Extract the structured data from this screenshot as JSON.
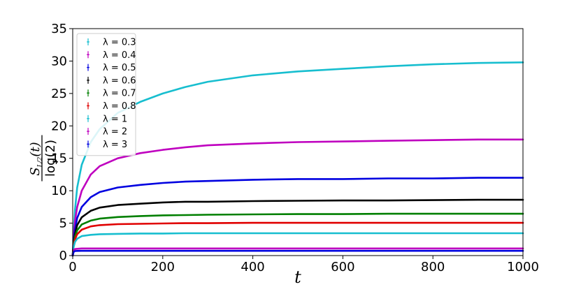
{
  "chart_data": {
    "type": "line",
    "title": "",
    "xlabel": "t",
    "ylabel": {
      "numerator": "S",
      "subscript": "L/2",
      "arg": "(t)",
      "denominator": "log(2)"
    },
    "xlim": [
      0,
      1000
    ],
    "ylim": [
      0,
      35
    ],
    "xticks": [
      "0",
      "200",
      "400",
      "600",
      "800",
      "1000"
    ],
    "yticks": [
      "0",
      "5",
      "10",
      "15",
      "20",
      "25",
      "30",
      "35"
    ],
    "grid": false,
    "legend": "top-left",
    "legend_prefix": "λ = ",
    "series": [
      {
        "name": "0.3",
        "label": "λ = 0.3",
        "color": "#17becf",
        "x": [
          0,
          2,
          5,
          10,
          20,
          40,
          60,
          100,
          150,
          200,
          250,
          300,
          400,
          500,
          600,
          700,
          800,
          900,
          1000
        ],
        "y": [
          0,
          3.5,
          7,
          10.5,
          14,
          17.5,
          19.5,
          22,
          23.7,
          25,
          26,
          26.8,
          27.8,
          28.4,
          28.8,
          29.2,
          29.5,
          29.7,
          29.8
        ]
      },
      {
        "name": "0.4",
        "label": "λ = 0.4",
        "color": "#bf00bf",
        "x": [
          0,
          2,
          5,
          10,
          20,
          40,
          60,
          100,
          150,
          200,
          250,
          300,
          400,
          500,
          600,
          700,
          800,
          900,
          1000
        ],
        "y": [
          0,
          2.8,
          5.3,
          7.5,
          10,
          12.5,
          13.8,
          15,
          15.8,
          16.3,
          16.7,
          17,
          17.3,
          17.5,
          17.6,
          17.7,
          17.8,
          17.9,
          17.9
        ]
      },
      {
        "name": "0.5",
        "label": "λ = 0.5",
        "color": "#0000e0",
        "x": [
          0,
          2,
          5,
          10,
          20,
          40,
          60,
          100,
          150,
          200,
          250,
          300,
          400,
          500,
          600,
          700,
          800,
          900,
          1000
        ],
        "y": [
          0,
          2.2,
          4,
          5.8,
          7.5,
          9,
          9.8,
          10.5,
          10.9,
          11.2,
          11.4,
          11.5,
          11.7,
          11.8,
          11.8,
          11.9,
          11.9,
          12,
          12
        ]
      },
      {
        "name": "0.6",
        "label": "λ = 0.6",
        "color": "#000000",
        "x": [
          0,
          2,
          5,
          10,
          20,
          40,
          60,
          100,
          150,
          200,
          250,
          300,
          400,
          500,
          600,
          700,
          800,
          900,
          1000
        ],
        "y": [
          0,
          1.8,
          3.3,
          4.7,
          5.9,
          6.9,
          7.4,
          7.8,
          8.0,
          8.2,
          8.3,
          8.3,
          8.4,
          8.45,
          8.5,
          8.5,
          8.55,
          8.6,
          8.6
        ]
      },
      {
        "name": "0.7",
        "label": "λ = 0.7",
        "color": "#007f00",
        "x": [
          0,
          2,
          5,
          10,
          20,
          40,
          60,
          100,
          150,
          200,
          250,
          300,
          400,
          500,
          600,
          700,
          800,
          900,
          1000
        ],
        "y": [
          0,
          1.6,
          2.9,
          3.9,
          4.8,
          5.4,
          5.7,
          5.95,
          6.1,
          6.2,
          6.25,
          6.3,
          6.35,
          6.4,
          6.4,
          6.45,
          6.45,
          6.45,
          6.45
        ]
      },
      {
        "name": "0.8",
        "label": "λ = 0.8",
        "color": "#e00000",
        "x": [
          0,
          2,
          5,
          10,
          20,
          40,
          60,
          100,
          150,
          200,
          250,
          300,
          400,
          500,
          600,
          700,
          800,
          900,
          1000
        ],
        "y": [
          0,
          1.5,
          2.5,
          3.3,
          4.0,
          4.5,
          4.7,
          4.85,
          4.9,
          4.95,
          5.0,
          5.0,
          5.05,
          5.05,
          5.05,
          5.05,
          5.05,
          5.05,
          5.05
        ]
      },
      {
        "name": "1",
        "label": "λ = 1",
        "color": "#17becf",
        "x": [
          0,
          2,
          5,
          10,
          20,
          40,
          60,
          100,
          150,
          200,
          250,
          300,
          400,
          500,
          600,
          700,
          800,
          900,
          1000
        ],
        "y": [
          0,
          1.3,
          2.1,
          2.6,
          3.0,
          3.2,
          3.3,
          3.35,
          3.4,
          3.4,
          3.45,
          3.45,
          3.45,
          3.45,
          3.45,
          3.45,
          3.45,
          3.45,
          3.45
        ]
      },
      {
        "name": "2",
        "label": "λ = 2",
        "color": "#bf00bf",
        "x": [
          0,
          2,
          5,
          10,
          20,
          40,
          60,
          100,
          150,
          200,
          250,
          300,
          400,
          500,
          600,
          700,
          800,
          900,
          1000
        ],
        "y": [
          0,
          0.8,
          1.0,
          1.05,
          1.1,
          1.1,
          1.1,
          1.1,
          1.1,
          1.1,
          1.1,
          1.1,
          1.1,
          1.1,
          1.1,
          1.1,
          1.1,
          1.1,
          1.1
        ]
      },
      {
        "name": "3",
        "label": "λ = 3",
        "color": "#0000e0",
        "x": [
          0,
          2,
          5,
          10,
          20,
          40,
          60,
          100,
          150,
          200,
          250,
          300,
          400,
          500,
          600,
          700,
          800,
          900,
          1000
        ],
        "y": [
          0,
          0.55,
          0.7,
          0.72,
          0.73,
          0.73,
          0.73,
          0.73,
          0.73,
          0.73,
          0.73,
          0.73,
          0.73,
          0.73,
          0.73,
          0.73,
          0.73,
          0.73,
          0.73
        ]
      }
    ]
  }
}
